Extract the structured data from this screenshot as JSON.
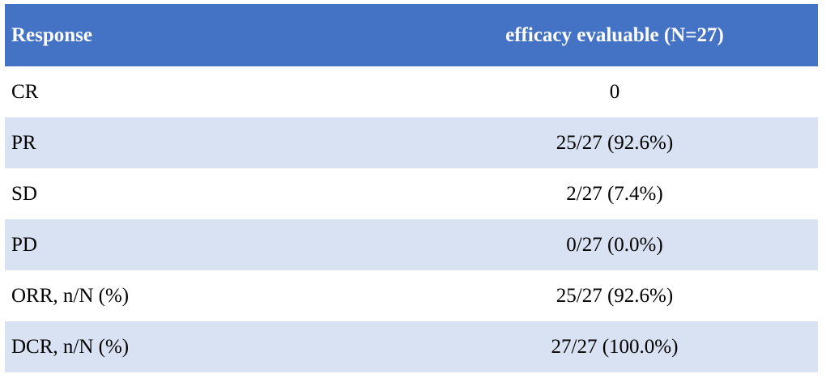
{
  "table": {
    "headers": [
      "Response",
      "efficacy evaluable (N=27)"
    ],
    "rows": [
      {
        "label": "CR",
        "value": "0"
      },
      {
        "label": "PR",
        "value": "25/27 (92.6%)"
      },
      {
        "label": "SD",
        "value": "2/27 (7.4%)"
      },
      {
        "label": "PD",
        "value": "0/27 (0.0%)"
      },
      {
        "label": "ORR, n/N (%)",
        "value": "25/27 (92.6%)"
      },
      {
        "label": "DCR, n/N (%)",
        "value": "27/27 (100.0%)"
      }
    ],
    "colors": {
      "header_bg": "#4472c4",
      "header_text": "#ffffff",
      "shaded_row_bg": "#d9e2f3",
      "plain_row_bg": "#ffffff"
    }
  }
}
